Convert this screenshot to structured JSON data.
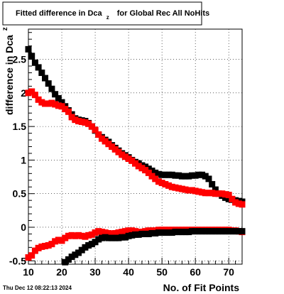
{
  "chart_data": {
    "type": "scatter",
    "title_main": "Fitted difference in Dca",
    "title_sub": "z",
    "title_rest": "for Global Rec All NoHits",
    "xlabel": "No. of Fit Points",
    "ylabel_main": "difference in Dca",
    "ylabel_sub": "z",
    "xlim": [
      10,
      74
    ],
    "ylim": [
      -0.55,
      2.95
    ],
    "x_ticks": [
      10,
      20,
      30,
      40,
      50,
      60,
      70
    ],
    "y_ticks": [
      -0.5,
      0,
      0.5,
      1,
      1.5,
      2,
      2.5
    ],
    "y_tick_labels": [
      "-0.5",
      "0",
      "0.5",
      "1",
      "1.5",
      "2",
      "2.5"
    ],
    "grid": true,
    "timestamp": "Thu Dec 12 08:22:13 2024",
    "series": [
      {
        "color": "#000000",
        "marker": "square",
        "x": [
          10,
          11,
          12,
          13,
          14,
          15,
          16,
          17,
          18,
          19,
          20,
          21,
          22,
          23,
          24,
          25,
          26,
          27,
          28,
          29,
          30,
          31,
          32,
          33,
          34,
          35,
          36,
          37,
          38,
          39,
          40,
          41,
          42,
          43,
          44,
          45,
          46,
          47,
          48,
          49,
          50,
          51,
          52,
          53,
          54,
          55,
          56,
          57,
          58,
          59,
          60,
          61,
          62,
          63,
          64,
          65,
          66,
          67,
          68,
          69,
          70,
          71,
          72,
          73,
          74
        ],
        "y": [
          2.65,
          2.55,
          2.45,
          2.38,
          2.3,
          2.22,
          2.14,
          2.06,
          1.98,
          1.92,
          1.86,
          1.8,
          1.74,
          1.68,
          1.62,
          1.6,
          1.59,
          1.58,
          1.55,
          1.5,
          1.44,
          1.38,
          1.34,
          1.3,
          1.27,
          1.22,
          1.18,
          1.14,
          1.1,
          1.07,
          1.04,
          1.0,
          0.97,
          0.95,
          0.92,
          0.9,
          0.87,
          0.84,
          0.81,
          0.79,
          0.78,
          0.78,
          0.78,
          0.78,
          0.77,
          0.77,
          0.76,
          0.76,
          0.76,
          0.77,
          0.77,
          0.78,
          0.78,
          0.76,
          0.72,
          0.64,
          0.56,
          0.5,
          0.47,
          0.44,
          0.42,
          0.41,
          0.4,
          0.39,
          0.38
        ]
      },
      {
        "color": "#ff0000",
        "marker": "square",
        "x": [
          10,
          11,
          12,
          13,
          14,
          15,
          16,
          17,
          18,
          19,
          20,
          21,
          22,
          23,
          24,
          25,
          26,
          27,
          28,
          29,
          30,
          31,
          32,
          33,
          34,
          35,
          36,
          37,
          38,
          39,
          40,
          41,
          42,
          43,
          44,
          45,
          46,
          47,
          48,
          49,
          50,
          51,
          52,
          53,
          54,
          55,
          56,
          57,
          58,
          59,
          60,
          61,
          62,
          63,
          64,
          65,
          66,
          67,
          68,
          69,
          70,
          71,
          72,
          73,
          74
        ],
        "y": [
          2.0,
          2.02,
          1.97,
          1.9,
          1.86,
          1.84,
          1.84,
          1.85,
          1.83,
          1.81,
          1.8,
          1.76,
          1.72,
          1.64,
          1.6,
          1.58,
          1.57,
          1.56,
          1.54,
          1.5,
          1.45,
          1.38,
          1.32,
          1.28,
          1.24,
          1.2,
          1.16,
          1.12,
          1.08,
          1.05,
          1.02,
          0.99,
          0.95,
          0.91,
          0.88,
          0.85,
          0.81,
          0.76,
          0.72,
          0.68,
          0.66,
          0.64,
          0.62,
          0.6,
          0.59,
          0.58,
          0.57,
          0.56,
          0.55,
          0.55,
          0.54,
          0.53,
          0.52,
          0.51,
          0.51,
          0.51,
          0.5,
          0.5,
          0.5,
          0.49,
          0.48,
          0.42,
          0.37,
          0.35,
          0.34
        ]
      },
      {
        "color": "#ff0000",
        "marker": "square",
        "x": [
          10,
          11,
          12,
          13,
          14,
          15,
          16,
          17,
          18,
          19,
          20,
          21,
          22,
          23,
          24,
          25,
          26,
          27,
          28,
          29,
          30,
          31,
          32,
          33,
          34,
          35,
          36,
          37,
          38,
          39,
          40,
          41,
          42,
          43,
          44,
          45,
          46,
          47,
          48,
          49,
          50,
          51,
          52,
          53,
          54,
          55,
          56,
          57,
          58,
          59,
          60,
          61,
          62,
          63,
          64,
          65,
          66,
          67,
          68,
          69,
          70,
          71,
          72,
          73,
          74
        ],
        "y": [
          -0.45,
          -0.42,
          -0.35,
          -0.31,
          -0.29,
          -0.28,
          -0.27,
          -0.25,
          -0.21,
          -0.19,
          -0.2,
          -0.16,
          -0.13,
          -0.12,
          -0.13,
          -0.12,
          -0.13,
          -0.14,
          -0.12,
          -0.11,
          -0.08,
          -0.06,
          -0.07,
          -0.08,
          -0.09,
          -0.1,
          -0.09,
          -0.08,
          -0.07,
          -0.06,
          -0.05,
          -0.05,
          -0.06,
          -0.07,
          -0.07,
          -0.06,
          -0.05,
          -0.05,
          -0.05,
          -0.04,
          -0.04,
          -0.04,
          -0.04,
          -0.04,
          -0.04,
          -0.04,
          -0.04,
          -0.04,
          -0.04,
          -0.04,
          -0.04,
          -0.04,
          -0.04,
          -0.04,
          -0.04,
          -0.04,
          -0.04,
          -0.04,
          -0.04,
          -0.04,
          -0.04,
          -0.05,
          -0.05,
          -0.06,
          -0.07
        ]
      },
      {
        "color": "#000000",
        "marker": "square",
        "x": [
          21,
          22,
          23,
          24,
          25,
          26,
          27,
          28,
          29,
          30,
          31,
          32,
          33,
          34,
          35,
          36,
          37,
          38,
          39,
          40,
          41,
          42,
          43,
          44,
          45,
          46,
          47,
          48,
          49,
          50,
          51,
          52,
          53,
          54,
          55,
          56,
          57,
          58,
          59,
          60,
          61,
          62,
          63,
          64,
          65,
          66,
          67,
          68,
          69,
          70,
          71,
          72,
          73,
          74
        ],
        "y": [
          -0.52,
          -0.48,
          -0.44,
          -0.41,
          -0.38,
          -0.34,
          -0.3,
          -0.27,
          -0.25,
          -0.22,
          -0.18,
          -0.16,
          -0.15,
          -0.16,
          -0.16,
          -0.16,
          -0.16,
          -0.15,
          -0.15,
          -0.13,
          -0.12,
          -0.11,
          -0.11,
          -0.1,
          -0.1,
          -0.1,
          -0.09,
          -0.09,
          -0.08,
          -0.08,
          -0.08,
          -0.08,
          -0.08,
          -0.07,
          -0.07,
          -0.07,
          -0.07,
          -0.07,
          -0.06,
          -0.06,
          -0.06,
          -0.06,
          -0.06,
          -0.06,
          -0.06,
          -0.06,
          -0.06,
          -0.06,
          -0.06,
          -0.06,
          -0.06,
          -0.06,
          -0.06,
          -0.06
        ]
      }
    ]
  }
}
